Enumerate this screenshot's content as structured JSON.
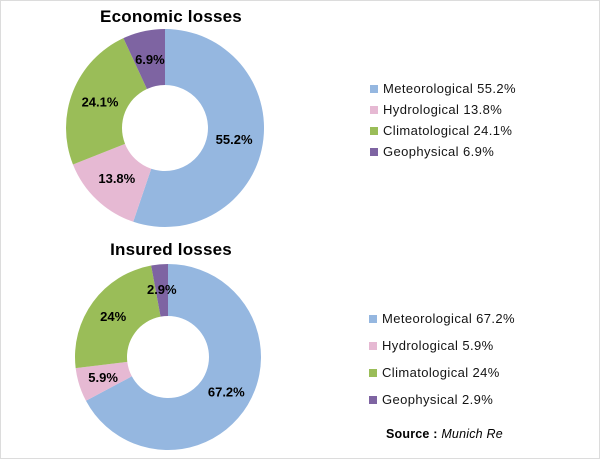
{
  "page": {
    "background": "#ffffff"
  },
  "chart_data": [
    {
      "type": "donut",
      "title": "Economic losses",
      "categories": [
        "Meteorological",
        "Hydrological",
        "Climatological",
        "Geophysical"
      ],
      "values": [
        55.2,
        13.8,
        24.1,
        6.9
      ],
      "slice_labels": [
        "55.2%",
        "13.8%",
        "24.1%",
        "6.9%"
      ],
      "colors": [
        "#95B7E0",
        "#E6B9D3",
        "#9ABD58",
        "#7E64A2"
      ],
      "legend": [
        "Meteorological 55.2%",
        "Hydrological 13.8%",
        "Climatological 24.1%",
        "Geophysical 6.9%"
      ],
      "legend_position": "right",
      "start_angle_deg": 0,
      "direction": "clockwise",
      "label_color": "#000000"
    },
    {
      "type": "donut",
      "title": "Insured losses",
      "categories": [
        "Meteorological",
        "Hydrological",
        "Climatological",
        "Geophysical"
      ],
      "values": [
        67.2,
        5.9,
        24,
        2.9
      ],
      "slice_labels": [
        "67.2%",
        "5.9%",
        "24%",
        "2.9%"
      ],
      "colors": [
        "#95B7E0",
        "#E6B9D3",
        "#9ABD58",
        "#7E64A2"
      ],
      "legend": [
        "Meteorological 67.2%",
        "Hydrological 5.9%",
        "Climatological 24%",
        "Geophysical 2.9%"
      ],
      "legend_position": "right",
      "start_angle_deg": 0,
      "direction": "clockwise",
      "label_color": "#000000"
    }
  ],
  "source": {
    "label": "Source :",
    "value": "Munich Re"
  }
}
